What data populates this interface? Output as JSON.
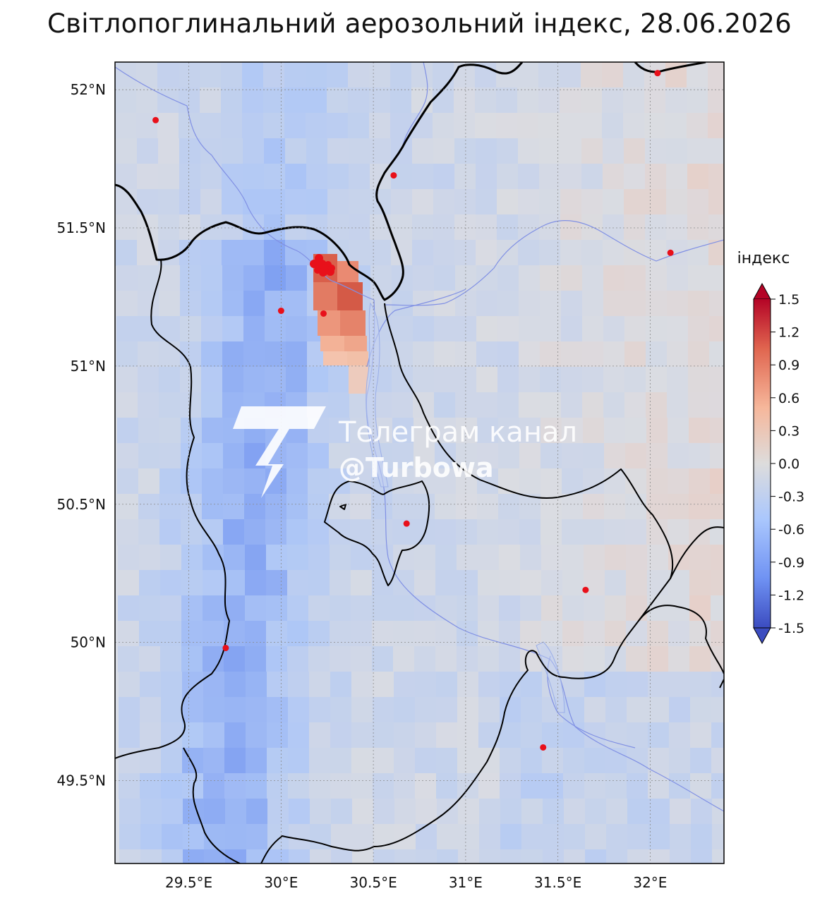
{
  "title": "Світлопоглинальний аерозольний індекс, 28.06.2026",
  "map": {
    "lon_range": [
      29.1,
      32.4
    ],
    "lat_range": [
      49.2,
      52.1
    ],
    "x_ticks": [
      {
        "value": 29.5,
        "label": "29.5°E"
      },
      {
        "value": 30.0,
        "label": "30°E"
      },
      {
        "value": 30.5,
        "label": "30.5°E"
      },
      {
        "value": 31.0,
        "label": "31°E"
      },
      {
        "value": 31.5,
        "label": "31.5°E"
      },
      {
        "value": 32.0,
        "label": "32°E"
      }
    ],
    "y_ticks": [
      {
        "value": 52.0,
        "label": "52°N"
      },
      {
        "value": 51.5,
        "label": "51.5°N"
      },
      {
        "value": 51.0,
        "label": "51°N"
      },
      {
        "value": 50.5,
        "label": "50.5°N"
      },
      {
        "value": 50.0,
        "label": "50°N"
      },
      {
        "value": 49.5,
        "label": "49.5°N"
      }
    ],
    "grid": true,
    "grid_style": "dotted",
    "hotspot_points": [
      {
        "lon": 29.32,
        "lat": 51.89
      },
      {
        "lon": 30.61,
        "lat": 51.69
      },
      {
        "lon": 32.04,
        "lat": 52.06
      },
      {
        "lon": 32.11,
        "lat": 51.41
      },
      {
        "lon": 30.0,
        "lat": 51.2
      },
      {
        "lon": 30.23,
        "lat": 51.19
      },
      {
        "lon": 30.68,
        "lat": 50.43
      },
      {
        "lon": 31.65,
        "lat": 50.19
      },
      {
        "lon": 29.7,
        "lat": 49.98
      },
      {
        "lon": 31.42,
        "lat": 49.62
      }
    ],
    "hotspot_cluster": {
      "lon": 30.25,
      "lat": 51.36
    }
  },
  "colorbar": {
    "label": "індекс",
    "min": -1.5,
    "max": 1.5,
    "ticks": [
      "1.5",
      "1.2",
      "0.9",
      "0.6",
      "0.3",
      "0.0",
      "-0.3",
      "-0.6",
      "-0.9",
      "-1.2",
      "-1.5"
    ],
    "colormap": "coolwarm",
    "extend": "both",
    "colors": [
      "#3b4cc0",
      "#6f92f3",
      "#aac7fd",
      "#dddcdc",
      "#f7b89c",
      "#e7745b",
      "#b40426"
    ]
  },
  "plume": {
    "max_index": 1.4,
    "lon": 30.3,
    "lat": 51.2
  },
  "watermark": {
    "line1": "Телеграм канал",
    "line2": "@Turbowa",
    "logo": "lightning-T-logo"
  },
  "colors": {
    "hotspot": "#e8101a",
    "border": "#000000",
    "river": "#7f8fe0"
  }
}
